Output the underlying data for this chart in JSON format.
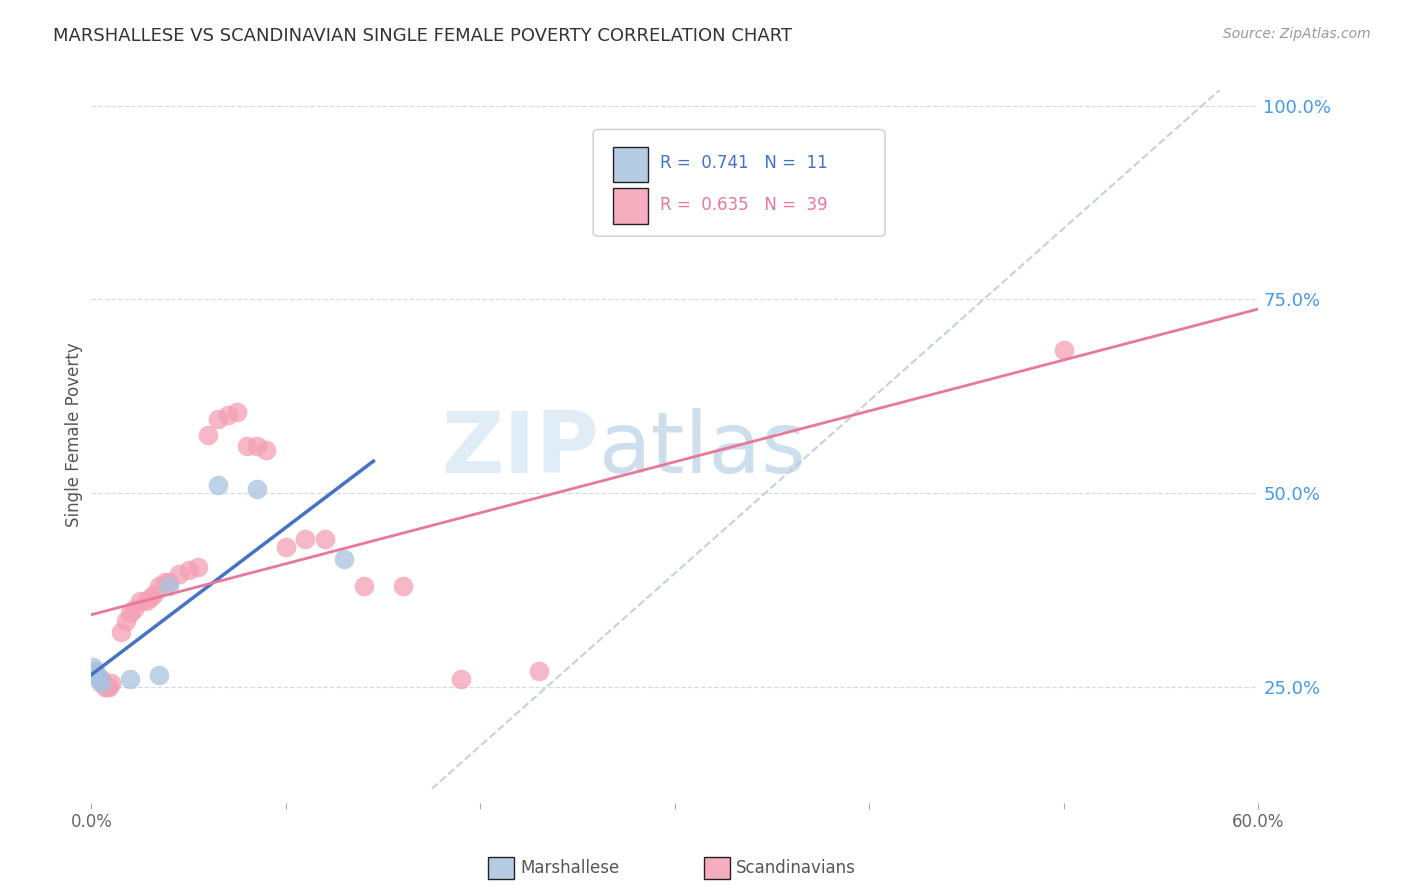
{
  "title": "MARSHALLESE VS SCANDINAVIAN SINGLE FEMALE POVERTY CORRELATION CHART",
  "source": "Source: ZipAtlas.com",
  "ylabel": "Single Female Poverty",
  "xlim": [
    0.0,
    0.6
  ],
  "ylim": [
    0.1,
    1.05
  ],
  "yticks_right": [
    0.25,
    0.5,
    0.75,
    1.0
  ],
  "ytick_right_labels": [
    "25.0%",
    "50.0%",
    "75.0%",
    "100.0%"
  ],
  "marshallese_color": "#a8c4e0",
  "scandinavian_color": "#f4a0b4",
  "blue_line_color": "#4472c4",
  "pink_line_color": "#e8789a",
  "ref_line_color": "#c0ccd8",
  "watermark_zip": "ZIP",
  "watermark_atlas": "atlas",
  "background_color": "#ffffff",
  "grid_color": "#d0d8e0",
  "title_color": "#333333",
  "source_color": "#999999",
  "axis_label_color": "#555555",
  "right_tick_color": "#4499ee",
  "marsh_N": 11,
  "marsh_R": 0.741,
  "scand_N": 39,
  "scand_R": 0.635,
  "marsh_x": [
    0.001,
    0.002,
    0.003,
    0.004,
    0.005,
    0.02,
    0.035,
    0.04,
    0.065,
    0.085,
    0.13
  ],
  "marsh_y": [
    0.275,
    0.27,
    0.265,
    0.26,
    0.255,
    0.26,
    0.265,
    0.38,
    0.51,
    0.505,
    0.415
  ],
  "scand_x": [
    0.001,
    0.002,
    0.003,
    0.004,
    0.005,
    0.006,
    0.007,
    0.008,
    0.009,
    0.01,
    0.015,
    0.018,
    0.02,
    0.022,
    0.025,
    0.028,
    0.03,
    0.032,
    0.035,
    0.038,
    0.04,
    0.045,
    0.05,
    0.055,
    0.06,
    0.065,
    0.07,
    0.075,
    0.08,
    0.085,
    0.09,
    0.1,
    0.11,
    0.12,
    0.14,
    0.16,
    0.19,
    0.23,
    0.5
  ],
  "scand_y": [
    0.27,
    0.265,
    0.265,
    0.26,
    0.26,
    0.255,
    0.25,
    0.25,
    0.25,
    0.255,
    0.32,
    0.335,
    0.345,
    0.35,
    0.36,
    0.36,
    0.365,
    0.37,
    0.38,
    0.385,
    0.385,
    0.395,
    0.4,
    0.405,
    0.575,
    0.595,
    0.6,
    0.605,
    0.56,
    0.56,
    0.555,
    0.43,
    0.44,
    0.44,
    0.38,
    0.38,
    0.26,
    0.27,
    0.685
  ],
  "ref_line_x": [
    0.175,
    0.58
  ],
  "ref_line_y": [
    0.118,
    1.02
  ],
  "blue_line_x": [
    0.0,
    0.145
  ],
  "pink_line_x": [
    0.0,
    0.6
  ]
}
